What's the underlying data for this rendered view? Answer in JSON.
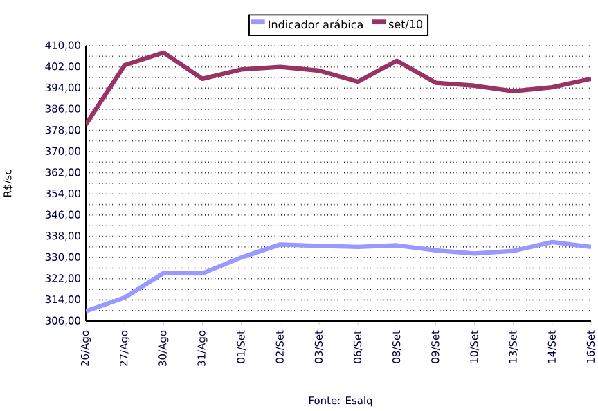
{
  "chart_data": {
    "type": "line",
    "categories": [
      "26/Ago",
      "27/Ago",
      "30/Ago",
      "31/Ago",
      "01/Set",
      "02/Set",
      "03/Set",
      "06/Set",
      "08/Set",
      "09/Set",
      "10/Set",
      "13/Set",
      "14/Set",
      "16/Set"
    ],
    "series": [
      {
        "name": "Indicador arábica",
        "color": "#9999ff",
        "values": [
          309.7,
          314.9,
          324.1,
          324.0,
          330.0,
          334.9,
          334.4,
          334.0,
          334.6,
          332.7,
          331.5,
          332.5,
          335.8,
          334.0
        ]
      },
      {
        "name": "set/10",
        "color": "#993366",
        "values": [
          380.2,
          402.7,
          407.4,
          397.5,
          401.0,
          402.0,
          400.6,
          396.4,
          404.3,
          396.0,
          394.9,
          392.8,
          394.3,
          397.5
        ]
      }
    ],
    "ylabel": "R$/sc",
    "ylim": [
      306,
      410
    ],
    "yticks": [
      {
        "value": 306,
        "label": "306,00"
      },
      {
        "value": 310,
        "label": null
      },
      {
        "value": 314,
        "label": "314,00"
      },
      {
        "value": 318,
        "label": null
      },
      {
        "value": 322,
        "label": "322,00"
      },
      {
        "value": 326,
        "label": null
      },
      {
        "value": 330,
        "label": "330,00"
      },
      {
        "value": 334,
        "label": null
      },
      {
        "value": 338,
        "label": "338,00"
      },
      {
        "value": 342,
        "label": null
      },
      {
        "value": 346,
        "label": "346,00"
      },
      {
        "value": 350,
        "label": null
      },
      {
        "value": 354,
        "label": "354,00"
      },
      {
        "value": 358,
        "label": null
      },
      {
        "value": 362,
        "label": "362,00"
      },
      {
        "value": 366,
        "label": null
      },
      {
        "value": 370,
        "label": "370,00"
      },
      {
        "value": 374,
        "label": null
      },
      {
        "value": 378,
        "label": "378,00"
      },
      {
        "value": 382,
        "label": null
      },
      {
        "value": 386,
        "label": "386,00"
      },
      {
        "value": 390,
        "label": null
      },
      {
        "value": 394,
        "label": "394,00"
      },
      {
        "value": 398,
        "label": null
      },
      {
        "value": 402,
        "label": "402,00"
      },
      {
        "value": 406,
        "label": null
      },
      {
        "value": 410,
        "label": "410,00"
      }
    ],
    "grid": "y",
    "legend": "top",
    "marker": "none",
    "line_style": "solid",
    "annotations": [
      "Fonte: Esalq"
    ]
  }
}
